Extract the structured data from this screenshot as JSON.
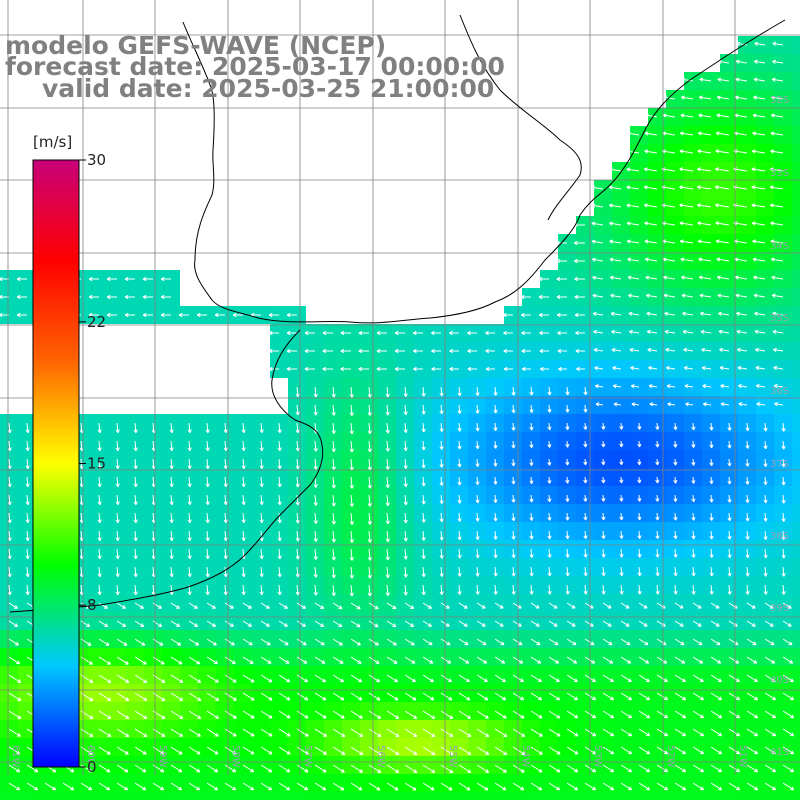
{
  "title": {
    "line1": "modelo GEFS-WAVE (NCEP)",
    "line2": "forecast date: 2025-03-17 00:00:00",
    "line3": "valid date: 2025-03-25 21:00:00"
  },
  "colorbar": {
    "units": "[m/s]",
    "ticks": [
      "30",
      "22",
      "15",
      "8",
      "0"
    ],
    "tick_values": [
      30,
      22,
      15,
      8,
      0
    ],
    "stops": [
      "#0000ff",
      "#00c8ff",
      "#00ff00",
      "#ffff00",
      "#ff6600",
      "#ff0000",
      "#c8007a"
    ]
  },
  "latitude_labels": [
    "32S",
    "33S",
    "34S",
    "35S",
    "36S",
    "37S",
    "38S",
    "39S",
    "40S",
    "41S"
  ],
  "longitude_labels": [
    "61W",
    "60W",
    "59W",
    "58W",
    "57W",
    "56W",
    "55W",
    "54W",
    "53W",
    "52W",
    "51W"
  ],
  "colors": {
    "land": "#ffffff",
    "grid": "#808080",
    "arrow": "#ffffff",
    "coastline": "#000000"
  }
}
